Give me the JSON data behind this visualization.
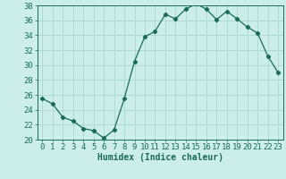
{
  "x": [
    0,
    1,
    2,
    3,
    4,
    5,
    6,
    7,
    8,
    9,
    10,
    11,
    12,
    13,
    14,
    15,
    16,
    17,
    18,
    19,
    20,
    21,
    22,
    23
  ],
  "y": [
    25.5,
    24.8,
    23.0,
    22.5,
    21.5,
    21.2,
    20.2,
    21.3,
    25.5,
    30.5,
    33.8,
    34.5,
    36.8,
    36.2,
    37.5,
    38.2,
    37.5,
    36.1,
    37.2,
    36.2,
    35.1,
    34.3,
    31.2,
    29.0
  ],
  "xlabel": "Humidex (Indice chaleur)",
  "ylim": [
    20,
    38
  ],
  "xlim": [
    -0.5,
    23.5
  ],
  "yticks": [
    20,
    22,
    24,
    26,
    28,
    30,
    32,
    34,
    36,
    38
  ],
  "xticks": [
    0,
    1,
    2,
    3,
    4,
    5,
    6,
    7,
    8,
    9,
    10,
    11,
    12,
    13,
    14,
    15,
    16,
    17,
    18,
    19,
    20,
    21,
    22,
    23
  ],
  "line_color": "#1a6b5a",
  "marker": "D",
  "marker_size": 2.2,
  "bg_color": "#cceee8",
  "grid_color": "#aad8d0",
  "tick_color": "#1a6b5a",
  "label_color": "#1a6b5a",
  "font_size": 6.5
}
